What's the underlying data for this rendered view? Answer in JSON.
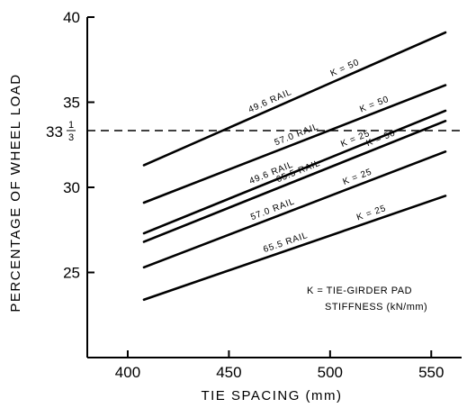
{
  "chart_data": {
    "type": "line",
    "xlabel": "TIE SPACING (mm)",
    "ylabel": "PERCENTAGE OF WHEEL LOAD",
    "xlim": [
      380,
      565
    ],
    "ylim": [
      20,
      40
    ],
    "x_ticks": [
      {
        "value": 400,
        "label": "400"
      },
      {
        "value": 450,
        "label": "450"
      },
      {
        "value": 500,
        "label": "500"
      },
      {
        "value": 550,
        "label": "550"
      }
    ],
    "y_ticks": [
      {
        "value": 25,
        "label": "25"
      },
      {
        "value": 30,
        "label": "30"
      },
      {
        "value": 35,
        "label": "35"
      },
      {
        "value": 40,
        "label": "40"
      }
    ],
    "reference_line": {
      "y": 33.333,
      "style": "dashed",
      "label_whole": "33",
      "label_num": "1",
      "label_den": "3"
    },
    "series": [
      {
        "name": "49.6 RAIL K=50",
        "rail": "49.6 RAIL",
        "k": "K = 50",
        "x": [
          408,
          557
        ],
        "values": [
          31.3,
          39.1
        ]
      },
      {
        "name": "57.0 RAIL K=50",
        "rail": "57.0 RAIL",
        "k": "K = 50",
        "x": [
          408,
          557
        ],
        "values": [
          29.1,
          36.0
        ]
      },
      {
        "name": "49.6 RAIL K=25",
        "rail": "49.6 RAIL",
        "k": "K = 25",
        "x": [
          408,
          557
        ],
        "values": [
          27.3,
          34.5
        ]
      },
      {
        "name": "65.5 RAIL K=50",
        "rail": "65.5 RAIL",
        "k": "K = 50",
        "x": [
          408,
          557
        ],
        "values": [
          26.8,
          33.9
        ]
      },
      {
        "name": "57.0 RAIL K=25",
        "rail": "57.0 RAIL",
        "k": "K = 25",
        "x": [
          408,
          557
        ],
        "values": [
          25.3,
          32.1
        ]
      },
      {
        "name": "65.5 RAIL K=25",
        "rail": "65.5 RAIL",
        "k": "K = 25",
        "x": [
          408,
          557
        ],
        "values": [
          23.4,
          29.5
        ]
      }
    ],
    "legend_note": {
      "line1": "K = TIE-GIRDER PAD",
      "line2": "STIFFNESS (kN/mm)"
    },
    "grid": false
  }
}
